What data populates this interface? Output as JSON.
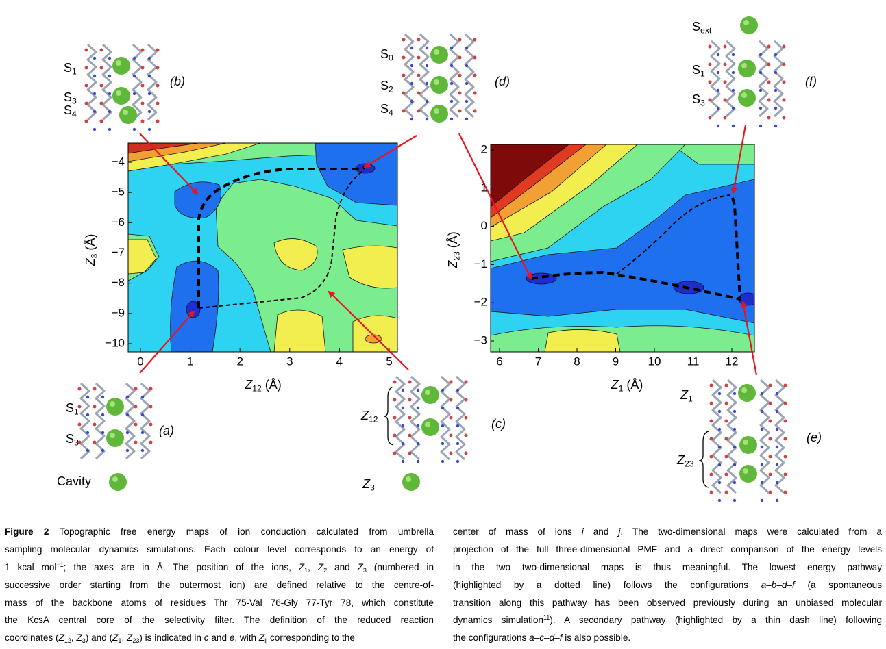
{
  "figure": {
    "map_left": {
      "xlabel": {
        "main": "Z",
        "sub": "12",
        "rest": "(Å)"
      },
      "ylabel": {
        "main": "Z",
        "sub": "3",
        "rest": "(Å)"
      },
      "xticks": [
        0,
        1,
        2,
        3,
        4,
        5
      ],
      "yticks": [
        {
          "value": -4,
          "label": "−4"
        },
        {
          "value": -5,
          "label": "−5"
        },
        {
          "value": -6,
          "label": "−6"
        },
        {
          "value": -7,
          "label": "−7"
        },
        {
          "value": -8,
          "label": "−8"
        },
        {
          "value": -9,
          "label": "−9"
        },
        {
          "value": -10,
          "label": "−10"
        }
      ]
    },
    "map_right": {
      "xlabel": {
        "main": "Z",
        "sub": "1",
        "rest": "(Å)"
      },
      "ylabel": {
        "main": "Z",
        "sub": "23",
        "rest": "(Å)"
      },
      "xticks": [
        6,
        7,
        8,
        9,
        10,
        11,
        12
      ],
      "yticks": [
        2,
        1,
        0,
        {
          "value": -1,
          "label": "−1"
        },
        {
          "value": -2,
          "label": "−2"
        },
        {
          "value": -3,
          "label": "−3"
        }
      ]
    },
    "structures": [
      {
        "panel": "(b)",
        "sites": [
          {
            "main": "S",
            "sub": "1"
          },
          {
            "main": "S",
            "sub": "3"
          },
          {
            "main": "S",
            "sub": "4"
          }
        ]
      },
      {
        "panel": "(d)",
        "sites": [
          {
            "main": "S",
            "sub": "0"
          },
          {
            "main": "S",
            "sub": "2"
          },
          {
            "main": "S",
            "sub": "4"
          }
        ]
      },
      {
        "panel": "(f)",
        "sites": [
          {
            "main": "S",
            "sub": "ext"
          },
          {
            "main": "S",
            "sub": "1"
          },
          {
            "main": "S",
            "sub": "3"
          }
        ]
      },
      {
        "panel": "(a)",
        "sites": [
          {
            "main": "S",
            "sub": "1"
          },
          {
            "main": "S",
            "sub": "3"
          },
          {
            "main": "Cavity"
          }
        ]
      },
      {
        "panel": "(c)",
        "sites": [
          {
            "main": "Z",
            "sub": "12"
          },
          {
            "main": "Z",
            "sub": "3"
          }
        ]
      },
      {
        "panel": "(e)",
        "sites": [
          {
            "main": "Z",
            "sub": "1"
          },
          {
            "main": "Z",
            "sub": "23"
          }
        ]
      }
    ]
  },
  "caption": {
    "left": [
      [
        {
          "b": "Figure 2"
        },
        " Topographic free energy maps of ion conduction calculated from umbrella"
      ],
      [
        "sampling molecular dynamics simulations. Each colour level corresponds to an energy of"
      ],
      [
        "1 kcal mol",
        {
          "sup": "−1"
        },
        "; the axes are in Å. The position of the ions, ",
        {
          "i": "Z"
        },
        {
          "sub": "1"
        },
        ", ",
        {
          "i": "Z"
        },
        {
          "sub": "2"
        },
        " and ",
        {
          "i": "Z"
        },
        {
          "sub": "3"
        },
        " (numbered in"
      ],
      [
        "successive order starting from the outermost ion) are defined relative to the centre-of-"
      ],
      [
        "mass of the backbone atoms of residues Thr 75-Val 76-Gly 77-Tyr 78, which constitute"
      ],
      [
        "the KcsA central core of the selectivity filter. The definition of the reduced reaction"
      ],
      [
        "coordinates (",
        {
          "i": "Z"
        },
        {
          "sub": "12"
        },
        ", ",
        {
          "i": "Z"
        },
        {
          "sub": "3"
        },
        ") and (",
        {
          "i": "Z"
        },
        {
          "sub": "1"
        },
        ", ",
        {
          "i": "Z"
        },
        {
          "sub": "23"
        },
        ") is indicated in ",
        {
          "i": "c"
        },
        " and ",
        {
          "i": "e"
        },
        ", with ",
        {
          "i": "Z"
        },
        {
          "sub": "ij"
        },
        " corresponding to the"
      ]
    ],
    "right": [
      [
        "center of mass of ions ",
        {
          "i": "i"
        },
        " and ",
        {
          "i": "j"
        },
        ". The two-dimensional maps were calculated from a"
      ],
      [
        "projection of the full three-dimensional PMF and a direct comparison of the energy levels"
      ],
      [
        "in the two two-dimensional maps is thus meaningful. The lowest energy pathway"
      ],
      [
        "(highlighted by a dotted line) follows the configurations ",
        {
          "i": "a–b–d–f"
        },
        " (a spontaneous"
      ],
      [
        "transition along this pathway has been observed previously during an unbiased molecular"
      ],
      [
        "dynamics simulation",
        {
          "sup": "11"
        },
        "). A secondary pathway (highlighted by a thin dash line) following"
      ],
      [
        "the configurations ",
        {
          "i": "a–c–d–f"
        },
        " is also possible."
      ]
    ]
  }
}
